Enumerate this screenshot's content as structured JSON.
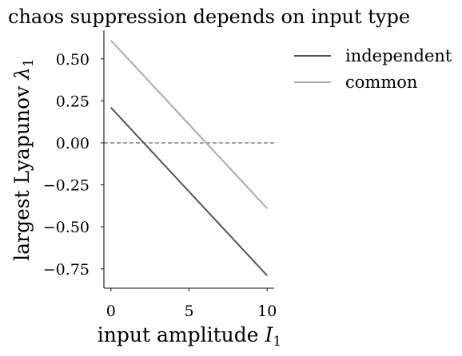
{
  "chart_data": {
    "type": "line",
    "title": "chaos suppression depends on input type",
    "xlabel": "input amplitude I₁",
    "ylabel": "largest Lyapunov λ₁",
    "xlim": [
      -0.45,
      10.45
    ],
    "ylim": [
      -0.865,
      0.67
    ],
    "xticks": [
      0,
      5,
      10
    ],
    "xtick_labels": [
      "0",
      "5",
      "10"
    ],
    "yticks": [
      0.5,
      0.25,
      0.0,
      -0.25,
      -0.5,
      -0.75
    ],
    "ytick_labels": [
      "0.50",
      "0.25",
      "0.00",
      "−0.25",
      "−0.50",
      "−0.75"
    ],
    "reference_line": {
      "y": 0.0,
      "style": "dashed",
      "color": "#666666"
    },
    "series": [
      {
        "name": "independent",
        "color": "#555555",
        "x": [
          0,
          10
        ],
        "y": [
          0.21,
          -0.79
        ]
      },
      {
        "name": "common",
        "color": "#aaaaaa",
        "x": [
          0,
          10
        ],
        "y": [
          0.61,
          -0.39
        ]
      }
    ],
    "grid": false,
    "legend": "outside-top-right"
  }
}
